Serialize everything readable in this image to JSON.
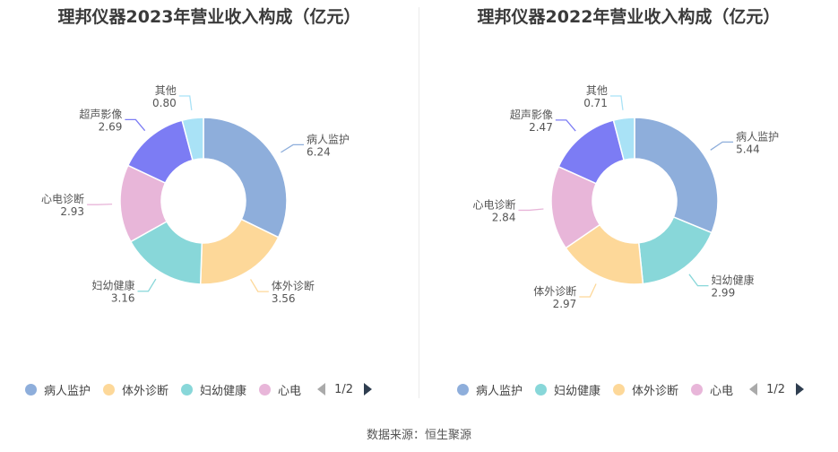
{
  "source": "数据来源：恒生聚源",
  "chart_data": [
    {
      "type": "pie",
      "title": "理邦仪器2023年营业收入构成（亿元）",
      "categories": [
        "病人监护",
        "体外诊断",
        "妇幼健康",
        "心电诊断",
        "超声影像",
        "其他"
      ],
      "values": [
        6.24,
        3.56,
        3.16,
        2.93,
        2.69,
        0.8
      ],
      "value_labels": [
        "6.24",
        "3.56",
        "3.16",
        "2.93",
        "2.69",
        "0.80"
      ],
      "colors": [
        "#8eaedb",
        "#fdd899",
        "#88d7d9",
        "#e8b6d9",
        "#7c7cf4",
        "#a9e2f6"
      ],
      "legend": {
        "placement": "bottom",
        "entries": [
          {
            "name": "病人监护",
            "color": "#8eaedb"
          },
          {
            "name": "体外诊断",
            "color": "#fdd899"
          },
          {
            "name": "妇幼健康",
            "color": "#88d7d9"
          },
          {
            "name": "心电",
            "color": "#e8b6d9"
          }
        ],
        "page": "1/2"
      }
    },
    {
      "type": "pie",
      "title": "理邦仪器2022年营业收入构成（亿元）",
      "categories": [
        "病人监护",
        "妇幼健康",
        "体外诊断",
        "心电诊断",
        "超声影像",
        "其他"
      ],
      "values": [
        5.44,
        2.99,
        2.97,
        2.84,
        2.47,
        0.71
      ],
      "value_labels": [
        "5.44",
        "2.99",
        "2.97",
        "2.84",
        "2.47",
        "0.71"
      ],
      "colors": [
        "#8eaedb",
        "#88d7d9",
        "#fdd899",
        "#e8b6d9",
        "#7c7cf4",
        "#a9e2f6"
      ],
      "legend": {
        "placement": "bottom",
        "entries": [
          {
            "name": "病人监护",
            "color": "#8eaedb"
          },
          {
            "name": "妇幼健康",
            "color": "#88d7d9"
          },
          {
            "name": "体外诊断",
            "color": "#fdd899"
          },
          {
            "name": "心电",
            "color": "#e8b6d9"
          }
        ],
        "page": "1/2"
      }
    }
  ]
}
